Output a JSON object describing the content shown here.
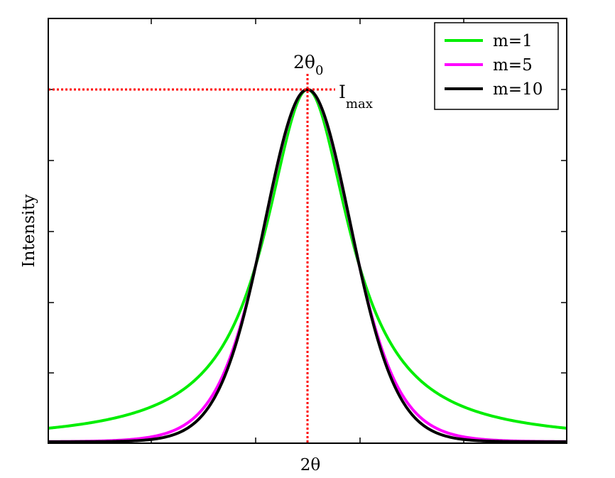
{
  "chart_data": {
    "type": "line",
    "title": "",
    "xlabel": "2θ",
    "ylabel": "Intensity",
    "xlim": [
      -1,
      1
    ],
    "ylim": [
      0,
      1
    ],
    "peak_position": 0,
    "peak_intensity": 1,
    "peak_label_main": "2θ",
    "peak_label_sub": "0",
    "max_label_main": "I",
    "max_label_sub": "max",
    "legend_position": "top-right",
    "grid": false,
    "reference_line_color": "#ff0000",
    "series": [
      {
        "name": "m=1",
        "m": 1,
        "color": "#00ee00"
      },
      {
        "name": "m=5",
        "m": 5,
        "color": "#ff00ff"
      },
      {
        "name": "m=10",
        "m": 10,
        "color": "#000000"
      }
    ]
  }
}
